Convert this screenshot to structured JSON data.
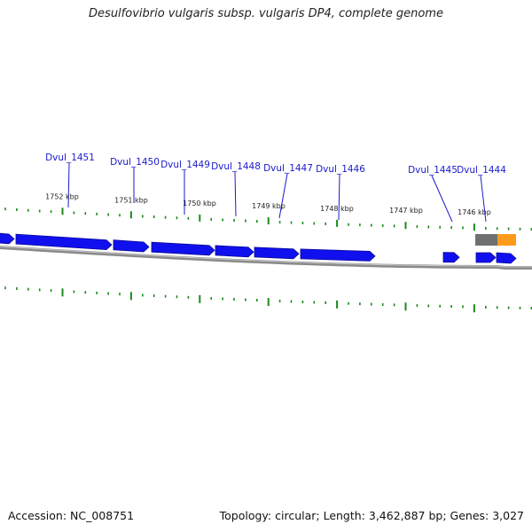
{
  "title": "Desulfovibrio vulgaris subsp. vulgaris DP4, complete genome",
  "footer": {
    "accession": "Accession: NC_008751",
    "summary": "Topology: circular; Length: 3,462,887 bp; Genes: 3,027"
  },
  "genes": [
    {
      "label": "Dvul_1451"
    },
    {
      "label": "Dvul_1450"
    },
    {
      "label": "Dvul_1449"
    },
    {
      "label": "Dvul_1448"
    },
    {
      "label": "Dvul_1447"
    },
    {
      "label": "Dvul_1446"
    },
    {
      "label": "Dvul_1445"
    },
    {
      "label": "Dvul_1444"
    }
  ],
  "kbp_ticks": [
    "1752 kbp",
    "1751 kbp",
    "1750 kbp",
    "1749 kbp",
    "1748 kbp",
    "1747 kbp",
    "1746 kbp"
  ],
  "colors": {
    "cds": "#1010ee",
    "cds_dark": "#0a0a99",
    "backbone": "#8a8a8a",
    "tick": "#1a8a1a",
    "label": "#1a1acc",
    "rna_gray": "#707070",
    "rna_orange": "#ff9a1a"
  }
}
